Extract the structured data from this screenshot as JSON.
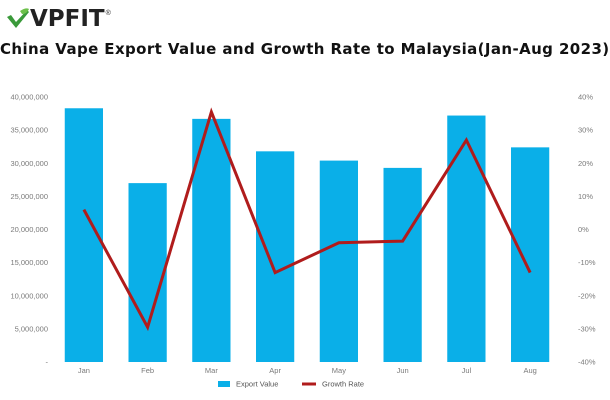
{
  "brand": {
    "logo_text": "VPFIT",
    "logo_reg": "®",
    "logo_color": "#3a9a3a"
  },
  "chart_data": {
    "type": "bar",
    "title": "China Vape Export Value and Growth Rate to Malaysia(Jan-Aug 2023)",
    "categories": [
      "Jan",
      "Feb",
      "Mar",
      "Apr",
      "May",
      "Jun",
      "Jul",
      "Aug"
    ],
    "series": [
      {
        "name": "Export Value",
        "type": "bar",
        "axis": "left",
        "color": "#0aafe8",
        "values": [
          38300000,
          27000000,
          36700000,
          31800000,
          30400000,
          29300000,
          37200000,
          32400000
        ]
      },
      {
        "name": "Growth Rate",
        "type": "line",
        "axis": "right",
        "color": "#b01c1c",
        "values": [
          6,
          -29.5,
          35.5,
          -13,
          -4,
          -3.5,
          27,
          -13
        ]
      }
    ],
    "y_left": {
      "ylim": [
        0,
        40000000
      ],
      "ticks": [
        0,
        5000000,
        10000000,
        15000000,
        20000000,
        25000000,
        30000000,
        35000000,
        40000000
      ],
      "tick_labels": [
        "-",
        "5,000,000",
        "10,000,000",
        "15,000,000",
        "20,000,000",
        "25,000,000",
        "30,000,000",
        "35,000,000",
        "40,000,000"
      ]
    },
    "y_right": {
      "ylim": [
        -40,
        40
      ],
      "ticks": [
        -40,
        -30,
        -20,
        -10,
        0,
        10,
        20,
        30,
        40
      ],
      "tick_labels": [
        "-40%",
        "-30%",
        "-20%",
        "-10%",
        "0%",
        "10%",
        "20%",
        "30%",
        "40%"
      ]
    },
    "grid": false,
    "legend": {
      "position": "bottom-center",
      "entries": [
        "Export Value",
        "Growth Rate"
      ]
    }
  }
}
